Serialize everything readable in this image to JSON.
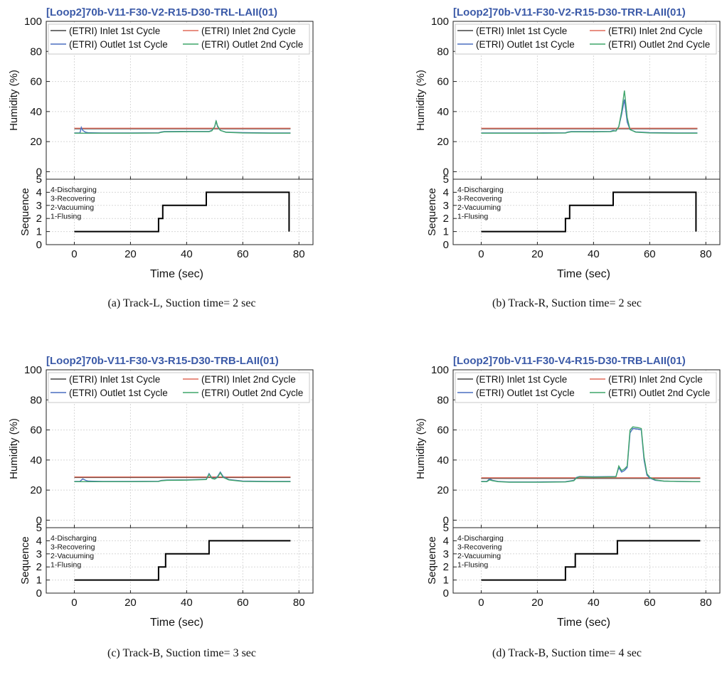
{
  "chart_data": [
    {
      "type": "line",
      "title": "[Loop2]70b-V11-F30-V2-R15-D30-TRL-LAII(01)",
      "caption": "(a)  Track-L,  Suction  time=  2  sec",
      "xlabel": "Time (sec)",
      "xlim": [
        -10,
        85
      ],
      "xticks": [
        0,
        20,
        40,
        60,
        80
      ],
      "top": {
        "ylabel": "Humidity (%)",
        "ylim": [
          -5,
          100
        ],
        "yticks": [
          0,
          20,
          40,
          60,
          80,
          100
        ],
        "legend_position": "top",
        "series": [
          {
            "name": "(ETRI) Inlet 1st Cycle",
            "color": "#444444",
            "x": [
              0,
              77
            ],
            "y": [
              28.6,
              28.6
            ]
          },
          {
            "name": "(ETRI) Inlet 2nd Cycle",
            "color": "#e06c5a",
            "x": [
              0,
              77
            ],
            "y": [
              28.9,
              28.9
            ]
          },
          {
            "name": "(ETRI) Outlet 1st Cycle",
            "color": "#4a6fc0",
            "x": [
              0,
              2,
              2.5,
              3,
              4,
              5,
              10,
              20,
              30,
              31,
              32,
              40,
              48,
              49,
              50,
              50.5,
              51,
              52,
              54,
              60,
              70,
              77
            ],
            "y": [
              25.8,
              25.8,
              29.5,
              27.5,
              26.2,
              25.9,
              25.8,
              25.8,
              25.9,
              26.4,
              26.7,
              26.8,
              26.8,
              27.5,
              30,
              33.5,
              30,
              27.5,
              26.3,
              26.0,
              25.8,
              25.8
            ]
          },
          {
            "name": "(ETRI) Outlet 2nd Cycle",
            "color": "#3fa56a",
            "x": [
              0,
              10,
              20,
              30,
              31,
              32,
              40,
              48,
              49,
              50,
              50.5,
              51,
              52,
              54,
              60,
              70,
              77
            ],
            "y": [
              25.6,
              25.6,
              25.6,
              25.7,
              26.2,
              26.5,
              26.6,
              26.6,
              27.2,
              30,
              34,
              30.5,
              27.5,
              26.2,
              25.8,
              25.6,
              25.6
            ]
          }
        ]
      },
      "bottom": {
        "ylabel": "Sequence",
        "ylim": [
          0,
          5
        ],
        "yticks": [
          0,
          1,
          2,
          3,
          4,
          5
        ],
        "stage_labels": [
          "4-Discharging",
          "3-Recovering",
          "2-Vacuuming",
          "1-Flusing"
        ],
        "series": [
          {
            "name": "Sequence",
            "color": "#000000",
            "x": [
              0,
              30,
              30,
              31.5,
              31.5,
              47,
              47,
              76.5,
              76.5
            ],
            "y": [
              1,
              1,
              2,
              2,
              3,
              3,
              4,
              4,
              1
            ]
          }
        ]
      }
    },
    {
      "type": "line",
      "title": "[Loop2]70b-V11-F30-V2-R15-D30-TRR-LAII(01)",
      "caption": "(b)  Track-R,  Suction  time=  2  sec",
      "xlabel": "Time (sec)",
      "xlim": [
        -10,
        85
      ],
      "xticks": [
        0,
        20,
        40,
        60,
        80
      ],
      "top": {
        "ylabel": "Humidity (%)",
        "ylim": [
          -5,
          100
        ],
        "yticks": [
          0,
          20,
          40,
          60,
          80,
          100
        ],
        "legend_position": "top",
        "series": [
          {
            "name": "(ETRI) Inlet 1st Cycle",
            "color": "#444444",
            "x": [
              0,
              77
            ],
            "y": [
              28.6,
              28.6
            ]
          },
          {
            "name": "(ETRI) Inlet 2nd Cycle",
            "color": "#e06c5a",
            "x": [
              0,
              77
            ],
            "y": [
              28.9,
              28.9
            ]
          },
          {
            "name": "(ETRI) Outlet 1st Cycle",
            "color": "#4a6fc0",
            "x": [
              0,
              10,
              20,
              30,
              31,
              32,
              40,
              46,
              47,
              48,
              49,
              50,
              51,
              52,
              53,
              55,
              60,
              70,
              77
            ],
            "y": [
              25.8,
              25.8,
              25.8,
              25.9,
              26.4,
              26.7,
              26.7,
              26.8,
              27.5,
              27.0,
              30,
              38,
              48,
              33,
              28,
              26.5,
              26.0,
              25.8,
              25.8
            ]
          },
          {
            "name": "(ETRI) Outlet 2nd Cycle",
            "color": "#3fa56a",
            "x": [
              0,
              10,
              20,
              30,
              31,
              32,
              40,
              46,
              47,
              48,
              49,
              50,
              51,
              52,
              53,
              55,
              60,
              70,
              77
            ],
            "y": [
              25.6,
              25.6,
              25.6,
              25.7,
              26.2,
              26.5,
              26.5,
              26.6,
              27.0,
              27.2,
              30,
              40,
              54,
              36,
              28,
              26.3,
              25.8,
              25.6,
              25.6
            ]
          }
        ]
      },
      "bottom": {
        "ylabel": "Sequence",
        "ylim": [
          0,
          5
        ],
        "yticks": [
          0,
          1,
          2,
          3,
          4,
          5
        ],
        "stage_labels": [
          "4-Discharging",
          "3-Recovering",
          "2-Vacuuming",
          "1-Flusing"
        ],
        "series": [
          {
            "name": "Sequence",
            "color": "#000000",
            "x": [
              0,
              30,
              30,
              31.5,
              31.5,
              47,
              47,
              76.5,
              76.5
            ],
            "y": [
              1,
              1,
              2,
              2,
              3,
              3,
              4,
              4,
              1
            ]
          }
        ]
      }
    },
    {
      "type": "line",
      "title": "[Loop2]70b-V11-F30-V3-R15-D30-TRB-LAII(01)",
      "caption": "(c)  Track-B,  Suction  time=  3  sec",
      "xlabel": "Time (sec)",
      "xlim": [
        -10,
        85
      ],
      "xticks": [
        0,
        20,
        40,
        60,
        80
      ],
      "top": {
        "ylabel": "Humidity (%)",
        "ylim": [
          -5,
          100
        ],
        "yticks": [
          0,
          20,
          40,
          60,
          80,
          100
        ],
        "legend_position": "top",
        "series": [
          {
            "name": "(ETRI) Inlet 1st Cycle",
            "color": "#444444",
            "x": [
              0,
              77
            ],
            "y": [
              28.4,
              28.4
            ]
          },
          {
            "name": "(ETRI) Inlet 2nd Cycle",
            "color": "#e06c5a",
            "x": [
              0,
              77
            ],
            "y": [
              28.7,
              28.7
            ]
          },
          {
            "name": "(ETRI) Outlet 1st Cycle",
            "color": "#4a6fc0",
            "x": [
              0,
              2,
              3,
              4,
              5,
              10,
              20,
              30,
              31,
              33,
              40,
              47,
              48,
              49,
              50,
              51,
              52,
              53,
              55,
              60,
              70,
              77
            ],
            "y": [
              25.8,
              25.8,
              27.5,
              26.5,
              26.0,
              25.8,
              25.8,
              25.9,
              26.4,
              26.7,
              26.8,
              27.2,
              31,
              28,
              27.5,
              29,
              32,
              29,
              27,
              26.0,
              25.8,
              25.8
            ]
          },
          {
            "name": "(ETRI) Outlet 2nd Cycle",
            "color": "#3fa56a",
            "x": [
              0,
              10,
              20,
              30,
              31,
              33,
              40,
              47,
              48,
              49,
              50,
              51,
              52,
              53,
              55,
              60,
              70,
              77
            ],
            "y": [
              25.6,
              25.6,
              25.6,
              25.7,
              26.2,
              26.5,
              26.6,
              27.0,
              30.5,
              27.8,
              27.3,
              28.5,
              31.5,
              28.5,
              26.8,
              25.8,
              25.6,
              25.6
            ]
          }
        ]
      },
      "bottom": {
        "ylabel": "Sequence",
        "ylim": [
          0,
          5
        ],
        "yticks": [
          0,
          1,
          2,
          3,
          4,
          5
        ],
        "stage_labels": [
          "4-Discharging",
          "3-Recovering",
          "2-Vacuuming",
          "1-Flusing"
        ],
        "series": [
          {
            "name": "Sequence",
            "color": "#000000",
            "x": [
              0,
              30,
              30,
              32.5,
              32.5,
              48,
              48,
              77
            ],
            "y": [
              1,
              1,
              2,
              2,
              3,
              3,
              4,
              4
            ]
          }
        ]
      }
    },
    {
      "type": "line",
      "title": "[Loop2]70b-V11-F30-V4-R15-D30-TRB-LAII(01)",
      "caption": "(d)  Track-B,  Suction  time=  4  sec",
      "xlabel": "Time (sec)",
      "xlim": [
        -10,
        85
      ],
      "xticks": [
        0,
        20,
        40,
        60,
        80
      ],
      "top": {
        "ylabel": "Humidity (%)",
        "ylim": [
          -5,
          100
        ],
        "yticks": [
          0,
          20,
          40,
          60,
          80,
          100
        ],
        "legend_position": "top",
        "series": [
          {
            "name": "(ETRI) Inlet 1st Cycle",
            "color": "#444444",
            "x": [
              0,
              78
            ],
            "y": [
              27.8,
              27.8
            ]
          },
          {
            "name": "(ETRI) Inlet 2nd Cycle",
            "color": "#e06c5a",
            "x": [
              0,
              78
            ],
            "y": [
              28.2,
              28.2
            ]
          },
          {
            "name": "(ETRI) Outlet 1st Cycle",
            "color": "#4a6fc0",
            "x": [
              0,
              2,
              3,
              4,
              6,
              10,
              20,
              30,
              33,
              34,
              35,
              40,
              48,
              49,
              50,
              51,
              52,
              53,
              54,
              56,
              57,
              58,
              59,
              60,
              62,
              65,
              70,
              78
            ],
            "y": [
              25.8,
              25.8,
              27.5,
              26.5,
              25.8,
              25.4,
              25.4,
              25.6,
              26.5,
              28.5,
              29,
              28.8,
              29.0,
              35,
              32,
              33,
              35,
              58,
              61,
              60.5,
              60,
              40,
              30,
              28,
              26.5,
              26.0,
              25.8,
              25.6
            ]
          },
          {
            "name": "(ETRI) Outlet 2nd Cycle",
            "color": "#3fa56a",
            "x": [
              0,
              2,
              3,
              4,
              6,
              10,
              20,
              30,
              33,
              34,
              35,
              40,
              48,
              49,
              50,
              51,
              52,
              53,
              54,
              56,
              57,
              58,
              59,
              60,
              62,
              65,
              70,
              78
            ],
            "y": [
              25.6,
              25.6,
              26.8,
              26.2,
              25.6,
              25.2,
              25.2,
              25.4,
              26.2,
              28.2,
              28.8,
              28.6,
              28.8,
              36,
              33,
              34,
              36,
              60,
              62,
              61.5,
              61,
              42,
              31,
              28.5,
              26.8,
              26.0,
              25.8,
              25.6
            ]
          }
        ]
      },
      "bottom": {
        "ylabel": "Sequence",
        "ylim": [
          0,
          5
        ],
        "yticks": [
          0,
          1,
          2,
          3,
          4,
          5
        ],
        "stage_labels": [
          "4-Discharging",
          "3-Recovering",
          "2-Vacuuming",
          "1-Flusing"
        ],
        "series": [
          {
            "name": "Sequence",
            "color": "#000000",
            "x": [
              0,
              30,
              30,
              33.5,
              33.5,
              48.5,
              48.5,
              78
            ],
            "y": [
              1,
              1,
              2,
              2,
              3,
              3,
              4,
              4
            ]
          }
        ]
      }
    }
  ]
}
